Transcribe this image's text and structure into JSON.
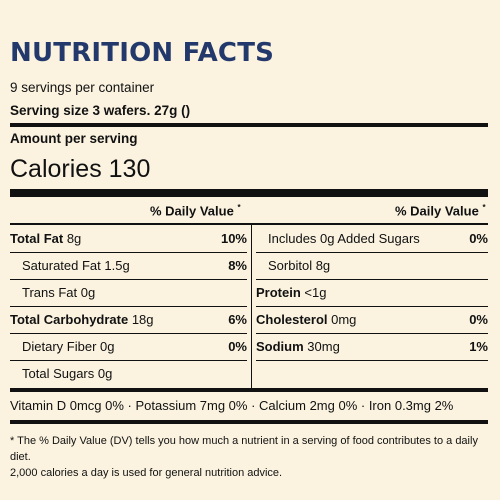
{
  "title": "NUTRITION FACTS",
  "servings_per_container": "9 servings per container",
  "serving_size": "Serving size 3 wafers. 27g ()",
  "amount_per_serving": "Amount per serving",
  "calories_label": "Calories 130",
  "dv_header": "% Daily Value",
  "dv_star": "*",
  "left_rows": [
    {
      "name": "Total Fat",
      "amount": " 8g",
      "pct": "10%",
      "bold": true
    },
    {
      "name": "Saturated Fat",
      "amount": " 1.5g",
      "pct": "8%",
      "bold": false
    },
    {
      "name": "Trans Fat",
      "amount": " 0g",
      "pct": "",
      "bold": false
    },
    {
      "name": "Total Carbohydrate",
      "amount": " 18g",
      "pct": "6%",
      "bold": true
    },
    {
      "name": "Dietary Fiber",
      "amount": " 0g",
      "pct": "0%",
      "bold": false
    },
    {
      "name": "Total Sugars",
      "amount": " 0g",
      "pct": "",
      "bold": false
    }
  ],
  "right_rows": [
    {
      "name": "Includes 0g Added Sugars",
      "amount": "",
      "pct": "0%",
      "bold": false
    },
    {
      "name": "Sorbitol",
      "amount": " 8g",
      "pct": "",
      "bold": false
    },
    {
      "name": "Protein",
      "amount": " <1g",
      "pct": "",
      "bold": true
    },
    {
      "name": "Cholesterol",
      "amount": " 0mg",
      "pct": "0%",
      "bold": true
    },
    {
      "name": "Sodium",
      "amount": " 30mg",
      "pct": "1%",
      "bold": true
    }
  ],
  "vitamins_line": "Vitamin D 0mcg 0% · Potassium 7mg 0% · Calcium 2mg 0% · Iron 0.3mg 2%",
  "footnote_line1": "* The % Daily Value (DV) tells you how much a nutrient in a serving of food contributes to a daily diet.",
  "footnote_line2": "2,000 calories a day is used for general nutrition advice."
}
